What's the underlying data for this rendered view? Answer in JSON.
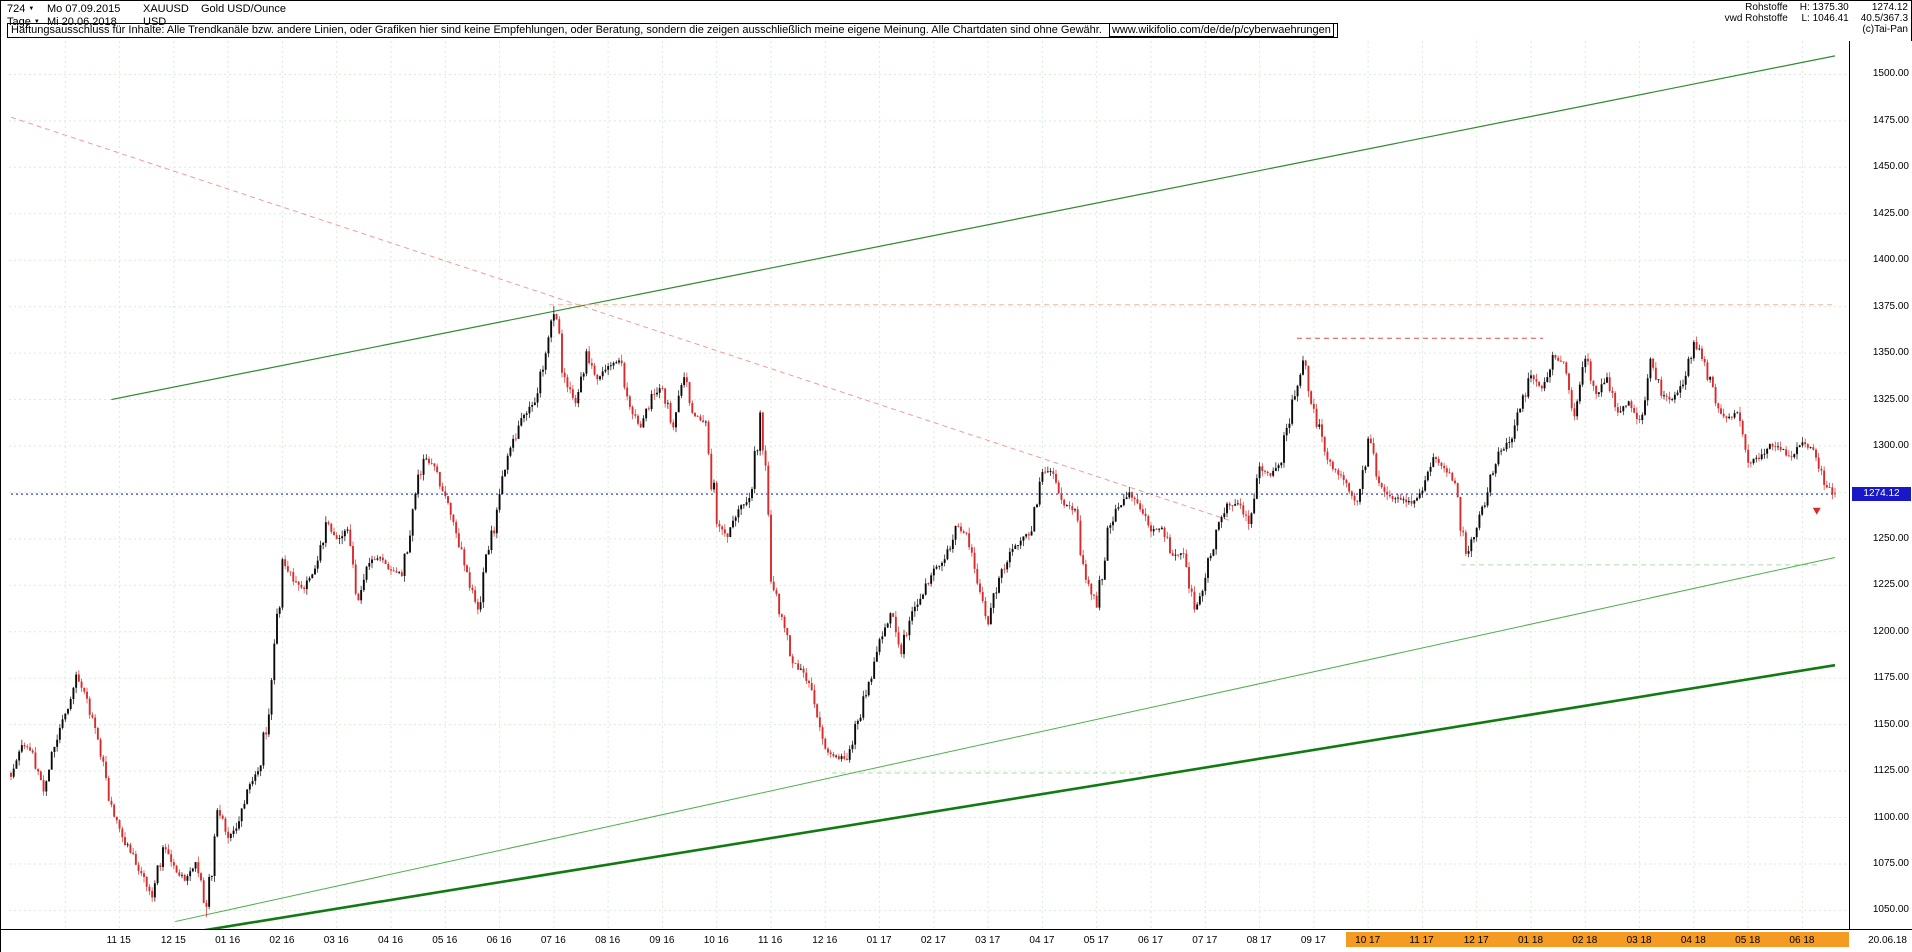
{
  "header": {
    "period_selector": {
      "value": "724"
    },
    "timeframe_selector": {
      "value": "Tage"
    },
    "start_date": "Mo 07.09.2015",
    "end_date": "Mi 20.06.2018",
    "symbol": "XAUUSD",
    "instrument": "Gold USD/Ounce",
    "currency": "USD"
  },
  "disclaimer": {
    "text": "Haftungsausschluss für Inhalte: Alle Trendkanäle bzw. andere Linien, oder Grafiken hier sind keine Empfehlungen, oder Beratung, sondern die zeigen ausschließlich meine eigene Meinung. Alle Chartdaten sind ohne Gewähr.",
    "link": "www.wikifolio.com/de/de/p/cyberwaehrungen"
  },
  "info_panel": {
    "category": "Rohstoffe",
    "provider": "vwd Rohstoffe",
    "high_label": "H: 1375.30",
    "low_label": "L: 1046.41",
    "last_price": "1274.12",
    "range_info": "40.5/367.3",
    "copyright": "(c)Tai-Pan"
  },
  "chart_data": {
    "type": "candlestick",
    "title": "Gold USD/Ounce",
    "symbol": "XAUUSD",
    "timeframe": "Tage (daily)",
    "date_range": {
      "start": "07.09.2015",
      "end": "20.06.2018"
    },
    "summary": {
      "high": 1375.3,
      "low": 1046.41,
      "last": 1274.12
    },
    "ylim": [
      1040,
      1518
    ],
    "y_ticks": [
      1050,
      1075,
      1100,
      1125,
      1150,
      1175,
      1200,
      1225,
      1250,
      1275,
      1300,
      1325,
      1350,
      1375,
      1400,
      1425,
      1450,
      1475,
      1500
    ],
    "grid": true,
    "months_total": 33.6,
    "first_label_month_offset": 2,
    "x_labels": [
      {
        "label": "11 15",
        "highlight": false
      },
      {
        "label": "12 15",
        "highlight": false
      },
      {
        "label": "01 16",
        "highlight": false
      },
      {
        "label": "02 16",
        "highlight": false
      },
      {
        "label": "03 16",
        "highlight": false
      },
      {
        "label": "04 16",
        "highlight": false
      },
      {
        "label": "05 16",
        "highlight": false
      },
      {
        "label": "06 16",
        "highlight": false
      },
      {
        "label": "07 16",
        "highlight": false
      },
      {
        "label": "08 16",
        "highlight": false
      },
      {
        "label": "09 16",
        "highlight": false
      },
      {
        "label": "10 16",
        "highlight": false
      },
      {
        "label": "11 16",
        "highlight": false
      },
      {
        "label": "12 16",
        "highlight": false
      },
      {
        "label": "01 17",
        "highlight": false
      },
      {
        "label": "02 17",
        "highlight": false
      },
      {
        "label": "03 17",
        "highlight": false
      },
      {
        "label": "04 17",
        "highlight": false
      },
      {
        "label": "05 17",
        "highlight": false
      },
      {
        "label": "06 17",
        "highlight": false
      },
      {
        "label": "07 17",
        "highlight": false
      },
      {
        "label": "08 17",
        "highlight": false
      },
      {
        "label": "09 17",
        "highlight": false
      },
      {
        "label": "10 17",
        "highlight": true
      },
      {
        "label": "11 17",
        "highlight": true
      },
      {
        "label": "12 17",
        "highlight": true
      },
      {
        "label": "01 18",
        "highlight": true
      },
      {
        "label": "02 18",
        "highlight": true
      },
      {
        "label": "03 18",
        "highlight": true
      },
      {
        "label": "04 18",
        "highlight": true
      },
      {
        "label": "05 18",
        "highlight": true
      },
      {
        "label": "06 18",
        "highlight": true
      }
    ],
    "x_axis_end_label": "20.06.18",
    "candles_per_step": 4,
    "weekly_closes": [
      1122,
      1139,
      1135,
      1114,
      1138,
      1156,
      1177,
      1164,
      1142,
      1109,
      1094,
      1081,
      1070,
      1057,
      1084,
      1074,
      1066,
      1076,
      1052,
      1104,
      1089,
      1098,
      1118,
      1128,
      1174,
      1239,
      1227,
      1223,
      1234,
      1259,
      1250,
      1255,
      1217,
      1237,
      1240,
      1233,
      1230,
      1266,
      1293,
      1289,
      1273,
      1253,
      1232,
      1212,
      1244,
      1274,
      1299,
      1315,
      1322,
      1341,
      1371,
      1337,
      1323,
      1351,
      1336,
      1343,
      1346,
      1321,
      1310,
      1328,
      1331,
      1310,
      1337,
      1316,
      1313,
      1258,
      1251,
      1266,
      1272,
      1318,
      1227,
      1208,
      1183,
      1178,
      1161,
      1137,
      1133,
      1131,
      1152,
      1173,
      1196,
      1210,
      1188,
      1211,
      1220,
      1234,
      1239,
      1257,
      1253,
      1226,
      1204,
      1229,
      1243,
      1249,
      1254,
      1286,
      1285,
      1268,
      1266,
      1228,
      1213,
      1256,
      1267,
      1275,
      1266,
      1254,
      1256,
      1241,
      1242,
      1212,
      1229,
      1255,
      1269,
      1269,
      1258,
      1289,
      1284,
      1291,
      1325,
      1346,
      1320,
      1297,
      1287,
      1280,
      1270,
      1304,
      1280,
      1273,
      1271,
      1269,
      1276,
      1294,
      1288,
      1280,
      1242,
      1256,
      1275,
      1297,
      1302,
      1320,
      1338,
      1331,
      1349,
      1345,
      1316,
      1347,
      1328,
      1337,
      1318,
      1324,
      1314,
      1347,
      1327,
      1325,
      1333,
      1356,
      1345,
      1323,
      1315,
      1318,
      1291,
      1293,
      1301,
      1298,
      1294,
      1302,
      1298,
      1279,
      1274.12
    ],
    "colors": {
      "up": "#0a0a0a",
      "down": "#d92b2b",
      "grid": "#d6eed6",
      "current_price": "#2121cc",
      "tag_bg": "#1818c8",
      "axis_highlight": "#f59a23"
    },
    "overlays": [
      {
        "name": "ascending-channel-upper-line",
        "style": "solid",
        "width": 1.2,
        "color": "#2e8b2e",
        "t1": 0.055,
        "p1": 1325,
        "t2": 1.0,
        "p2": 1510
      },
      {
        "name": "descending-trendline",
        "style": "dashed",
        "width": 1,
        "color": "#f29a9a",
        "t1": 0.0,
        "p1": 1477,
        "t2": 0.668,
        "p2": 1260
      },
      {
        "name": "resistance-line-1375",
        "style": "dashed",
        "width": 1,
        "color": "#f6b0a0",
        "t1": 0.295,
        "p1": 1376,
        "t2": 1.0,
        "p2": 1376
      },
      {
        "name": "resistance-line-1358",
        "style": "dashed",
        "width": 1,
        "color": "#e24d4d",
        "t1": 0.705,
        "p1": 1358,
        "t2": 0.84,
        "p2": 1358
      },
      {
        "name": "support-dashed-1124",
        "style": "dashed",
        "width": 1,
        "color": "#aadcaa",
        "t1": 0.45,
        "p1": 1124,
        "t2": 0.62,
        "p2": 1124
      },
      {
        "name": "support-dashed-1236",
        "style": "dashed",
        "width": 1,
        "color": "#aadcaa",
        "t1": 0.795,
        "p1": 1236,
        "t2": 0.99,
        "p2": 1236
      },
      {
        "name": "ascending-support-thick-line",
        "style": "solid",
        "width": 2.6,
        "color": "#127a12",
        "t1": 0.06,
        "p1": 1032,
        "t2": 1.0,
        "p2": 1182
      },
      {
        "name": "ascending-support-thin-line",
        "style": "solid",
        "width": 1,
        "color": "#4fae4f",
        "t1": 0.09,
        "p1": 1044,
        "t2": 1.0,
        "p2": 1240
      },
      {
        "name": "current-price-line",
        "style": "dotted",
        "width": 1.2,
        "color": "#2121cc",
        "t1": 0.0,
        "p1": 1274.12,
        "t2": 1.0,
        "p2": 1274.12
      }
    ],
    "marker": {
      "name": "last-price-arrow",
      "color": "#d92b2b",
      "t": 0.99,
      "price": 1263
    }
  }
}
